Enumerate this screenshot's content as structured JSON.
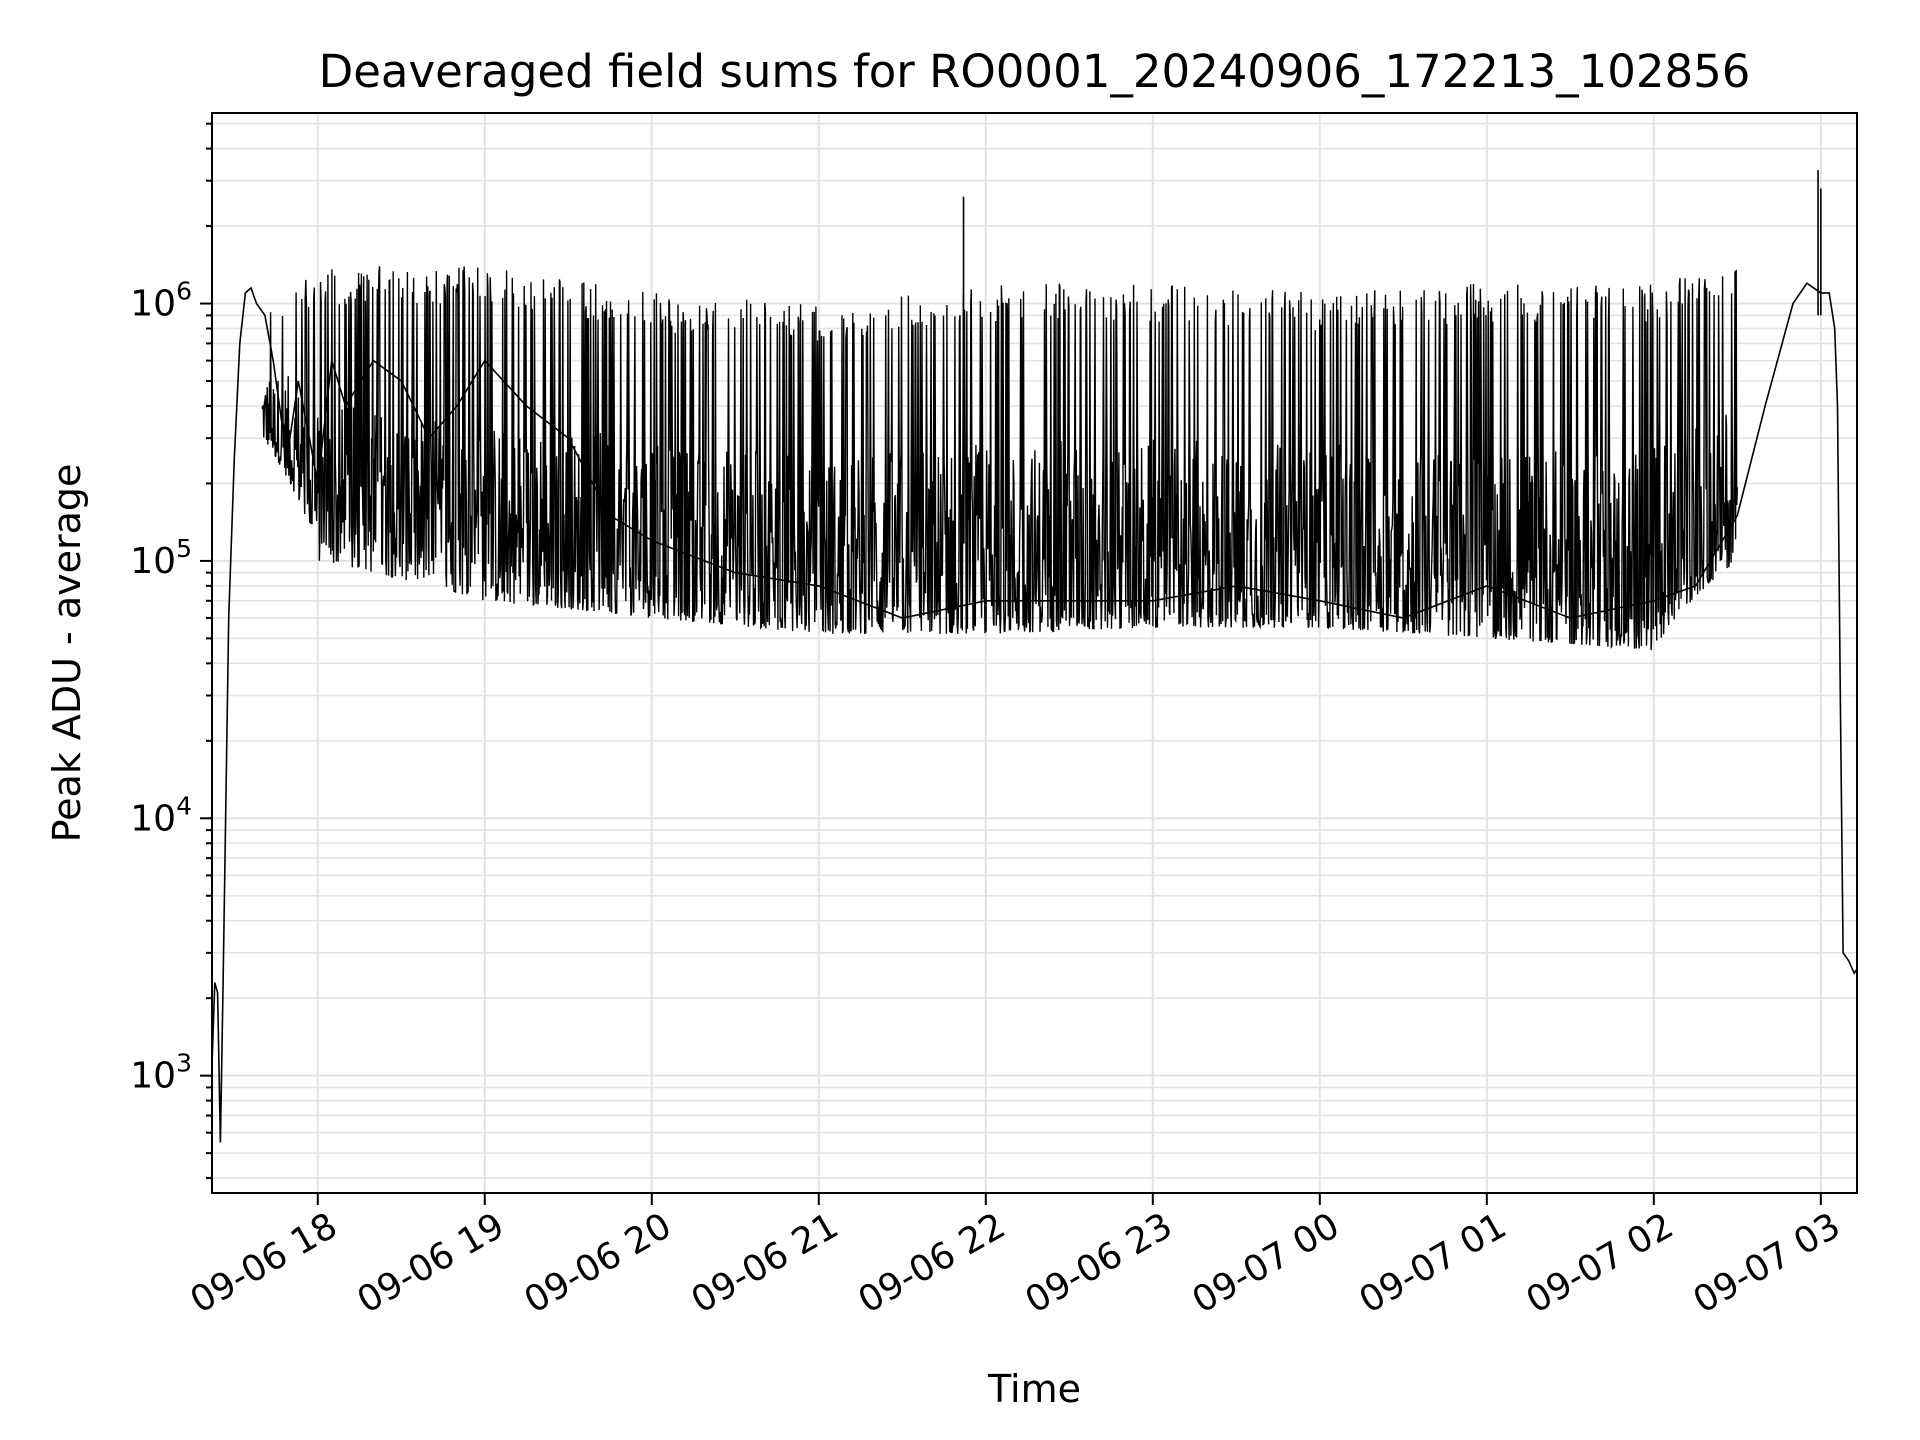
{
  "chart_data": {
    "type": "line",
    "title": "Deaveraged field sums for RO0001_20240906_172213_102856",
    "xlabel": "Time",
    "ylabel": "Peak ADU - average",
    "y_scale": "log",
    "ylim": [
      350,
      5500000
    ],
    "xlim": [
      "2024-09-06 17:22",
      "2024-09-07 03:13"
    ],
    "grid": true,
    "x_ticks": [
      {
        "value": "2024-09-06 18:00",
        "label": "09-06 18"
      },
      {
        "value": "2024-09-06 19:00",
        "label": "09-06 19"
      },
      {
        "value": "2024-09-06 20:00",
        "label": "09-06 20"
      },
      {
        "value": "2024-09-06 21:00",
        "label": "09-06 21"
      },
      {
        "value": "2024-09-06 22:00",
        "label": "09-06 22"
      },
      {
        "value": "2024-09-06 23:00",
        "label": "09-06 23"
      },
      {
        "value": "2024-09-07 00:00",
        "label": "09-07 00"
      },
      {
        "value": "2024-09-07 01:00",
        "label": "09-07 01"
      },
      {
        "value": "2024-09-07 02:00",
        "label": "09-07 02"
      },
      {
        "value": "2024-09-07 03:00",
        "label": "09-07 03"
      }
    ],
    "y_ticks": [
      {
        "value": 1000,
        "base": "10",
        "exp": "3"
      },
      {
        "value": 10000,
        "base": "10",
        "exp": "4"
      },
      {
        "value": 100000,
        "base": "10",
        "exp": "5"
      },
      {
        "value": 1000000,
        "base": "10",
        "exp": "6"
      }
    ],
    "series": [
      {
        "color": "#000000",
        "x": [
          "2024-09-06 17:22",
          "2024-09-06 17:23",
          "2024-09-06 17:24",
          "2024-09-06 17:25",
          "2024-09-06 17:26",
          "2024-09-06 17:28",
          "2024-09-06 17:30",
          "2024-09-06 17:32",
          "2024-09-06 17:34",
          "2024-09-06 17:36",
          "2024-09-06 17:38",
          "2024-09-06 17:41",
          "2024-09-06 17:44",
          "2024-09-06 17:47",
          "2024-09-06 17:50",
          "2024-09-06 17:53",
          "2024-09-06 17:57",
          "2024-09-06 18:00",
          "2024-09-06 18:05",
          "2024-09-06 18:10",
          "2024-09-06 18:20",
          "2024-09-06 18:30",
          "2024-09-06 18:40",
          "2024-09-06 18:50",
          "2024-09-06 19:00",
          "2024-09-06 19:15",
          "2024-09-06 19:30",
          "2024-09-06 19:45",
          "2024-09-06 20:00",
          "2024-09-06 20:30",
          "2024-09-06 21:00",
          "2024-09-06 21:30",
          "2024-09-06 22:00",
          "2024-09-06 22:30",
          "2024-09-06 23:00",
          "2024-09-06 23:30",
          "2024-09-07 00:00",
          "2024-09-07 00:30",
          "2024-09-07 01:00",
          "2024-09-07 01:30",
          "2024-09-07 02:00",
          "2024-09-07 02:15",
          "2024-09-07 02:30",
          "2024-09-07 02:40",
          "2024-09-07 02:50",
          "2024-09-07 02:55",
          "2024-09-07 03:00",
          "2024-09-07 03:03",
          "2024-09-07 03:05",
          "2024-09-07 03:06",
          "2024-09-07 03:07",
          "2024-09-07 03:08",
          "2024-09-07 03:10",
          "2024-09-07 03:12",
          "2024-09-07 03:13"
        ],
        "y": [
          1100,
          2300,
          2100,
          550,
          2300,
          60000,
          250000,
          700000,
          1100000,
          1150000,
          1000000,
          900000,
          600000,
          350000,
          300000,
          500000,
          300000,
          200000,
          600000,
          400000,
          600000,
          500000,
          300000,
          400000,
          600000,
          400000,
          300000,
          150000,
          120000,
          90000,
          80000,
          60000,
          70000,
          70000,
          70000,
          80000,
          70000,
          60000,
          80000,
          60000,
          70000,
          80000,
          150000,
          400000,
          1000000,
          1200000,
          1100000,
          1100000,
          800000,
          400000,
          30000,
          3000,
          2800,
          2500,
          2600
        ],
        "noise_band": {
          "x": [
            "2024-09-06 17:40",
            "2024-09-06 18:00",
            "2024-09-06 19:00",
            "2024-09-06 20:00",
            "2024-09-06 21:00",
            "2024-09-06 22:00",
            "2024-09-06 23:00",
            "2024-09-07 00:00",
            "2024-09-07 01:00",
            "2024-09-07 02:00",
            "2024-09-07 02:30"
          ],
          "low": [
            300000,
            100000,
            70000,
            60000,
            52000,
            52000,
            55000,
            55000,
            50000,
            45000,
            100000
          ],
          "high": [
            900000,
            1400000,
            1400000,
            1100000,
            1000000,
            1200000,
            1200000,
            1100000,
            1200000,
            1200000,
            1500000
          ]
        },
        "spikes": [
          {
            "x": "2024-09-06 21:52",
            "y": 2600000
          },
          {
            "x": "2024-09-07 02:59",
            "y": 3300000
          },
          {
            "x": "2024-09-07 03:00",
            "y": 2800000
          }
        ]
      }
    ]
  }
}
